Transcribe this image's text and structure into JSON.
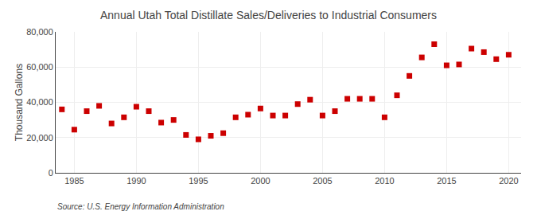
{
  "chart_data": {
    "type": "scatter",
    "title": "Annual Utah Total Distillate Sales/Deliveries to Industrial Consumers",
    "ylabel": "Thousand Gallons",
    "source": "Source: U.S. Energy Information Administration",
    "x": [
      1984,
      1985,
      1986,
      1987,
      1988,
      1989,
      1990,
      1991,
      1992,
      1993,
      1994,
      1995,
      1996,
      1997,
      1998,
      1999,
      2000,
      2001,
      2002,
      2003,
      2004,
      2005,
      2006,
      2007,
      2008,
      2009,
      2010,
      2011,
      2012,
      2013,
      2014,
      2015,
      2016,
      2017,
      2018,
      2019,
      2020
    ],
    "values": [
      36000,
      24500,
      35000,
      38000,
      28000,
      31500,
      37500,
      35000,
      28500,
      30000,
      21500,
      19000,
      21000,
      22500,
      31500,
      33000,
      36500,
      32500,
      32500,
      39000,
      41500,
      32500,
      35000,
      42000,
      42000,
      42000,
      31500,
      44000,
      55000,
      65500,
      73000,
      61000,
      61500,
      70500,
      68500,
      64500,
      67000
    ],
    "color": "#cc0000",
    "marker": "square",
    "xlim": [
      1983.5,
      2021
    ],
    "ylim": [
      0,
      80000
    ],
    "xticks": [
      1985,
      1990,
      1995,
      2000,
      2005,
      2010,
      2015,
      2020
    ],
    "yticks": [
      0,
      {
        "value": 20000,
        "label": "20,000"
      },
      {
        "value": 40000,
        "label": "40,000"
      },
      {
        "value": 60000,
        "label": "60,000"
      },
      {
        "value": 80000,
        "label": "80,000"
      }
    ],
    "grid": true
  }
}
